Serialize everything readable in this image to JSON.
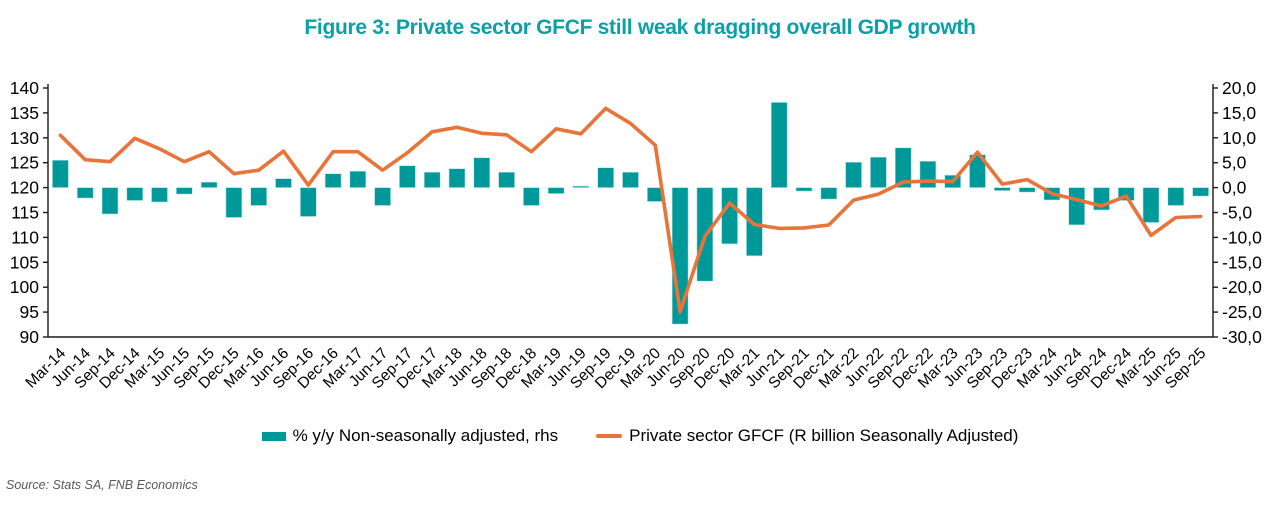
{
  "title": "Figure 3: Private sector GFCF still weak dragging overall GDP growth",
  "source": "Source: Stats SA, FNB Economics",
  "colors": {
    "title": "#0ba0a8",
    "bar": "#009999",
    "bar_edge": "#bfe4e4",
    "line": "#e8743a",
    "axis": "#1a1a1a",
    "source_text": "#595959"
  },
  "legend": {
    "items": [
      {
        "label": "% y/y Non-seasonally adjusted, rhs",
        "swatch": "bar-swatch-teal"
      },
      {
        "label": "Private sector GFCF (R billion Seasonally Adjusted)",
        "swatch": "line-swatch-orange"
      }
    ]
  },
  "chart_data": {
    "type": "bar+line combo",
    "grid": false,
    "legend_position": "bottom",
    "categories": [
      "Mar-14",
      "Jun-14",
      "Sep-14",
      "Dec-14",
      "Mar-15",
      "Jun-15",
      "Sep-15",
      "Dec-15",
      "Mar-16",
      "Jun-16",
      "Sep-16",
      "Dec-16",
      "Mar-17",
      "Jun-17",
      "Sep-17",
      "Dec-17",
      "Mar-18",
      "Jun-18",
      "Sep-18",
      "Dec-18",
      "Mar-19",
      "Jun-19",
      "Sep-19",
      "Dec-19",
      "Mar-20",
      "Jun-20",
      "Sep-20",
      "Dec-20",
      "Mar-21",
      "Jun-21",
      "Sep-21",
      "Dec-21",
      "Mar-22",
      "Jun-22",
      "Sep-22",
      "Dec-22",
      "Mar-23",
      "Jun-23",
      "Sep-23",
      "Dec-23",
      "Mar-24",
      "Jun-24",
      "Sep-24",
      "Dec-24",
      "Mar-25",
      "Jun-25",
      "Sep-25"
    ],
    "series": [
      {
        "name": "% y/y Non-seasonally adjusted, rhs",
        "type": "bar",
        "axis": "right",
        "color": "#009999",
        "values": [
          5.5,
          -2.1,
          -5.3,
          -2.6,
          -2.9,
          -1.3,
          1.1,
          -6.0,
          -3.6,
          1.8,
          -5.8,
          2.8,
          3.3,
          -3.6,
          4.4,
          3.1,
          3.8,
          6.0,
          3.1,
          -3.6,
          -1.2,
          0.3,
          4.0,
          3.1,
          -2.8,
          -27.4,
          -18.8,
          -11.3,
          -13.7,
          17.1,
          -0.7,
          -2.3,
          5.1,
          6.1,
          8.0,
          5.3,
          2.5,
          6.6,
          -0.6,
          -0.9,
          -2.5,
          -7.5,
          -4.5,
          -2.6,
          -7.0,
          -3.6,
          -1.7
        ]
      },
      {
        "name": "Private sector GFCF (R billion Seasonally Adjusted)",
        "type": "line",
        "axis": "left",
        "color": "#e8743a",
        "values": [
          130.5,
          125.6,
          125.2,
          129.9,
          127.8,
          125.2,
          127.2,
          122.8,
          123.5,
          127.3,
          120.5,
          127.2,
          127.2,
          123.5,
          127.0,
          131.2,
          132.1,
          130.9,
          130.6,
          127.2,
          131.8,
          130.8,
          135.9,
          132.9,
          128.5,
          95.1,
          110.2,
          116.9,
          112.6,
          111.8,
          111.9,
          112.5,
          117.5,
          118.7,
          121.1,
          121.3,
          121.2,
          127.1,
          120.7,
          121.6,
          118.8,
          117.6,
          116.3,
          118.3,
          110.4,
          114.0,
          114.2
        ]
      }
    ],
    "left_axis": {
      "min": 90,
      "max": 140,
      "step": 5,
      "ticks": [
        140,
        135,
        130,
        125,
        120,
        115,
        110,
        105,
        100,
        95,
        90
      ]
    },
    "right_axis": {
      "min": -30,
      "max": 20,
      "step": 5,
      "tick_labels": [
        "20,0",
        "15,0",
        "10,0",
        "5,0",
        "0,0",
        "-5,0",
        "-10,0",
        "-15,0",
        "-20,0",
        "-25,0",
        "-30,0"
      ]
    }
  }
}
